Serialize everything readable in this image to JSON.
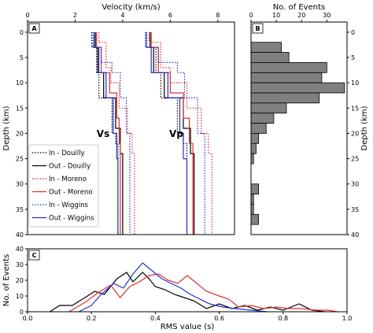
{
  "chart_data": [
    {
      "panel": "A",
      "type": "line",
      "xlabel": "Velocity (km/s)",
      "ylabel": "Depth (km)",
      "xlim": [
        0,
        8.7
      ],
      "ylim": [
        40,
        -2
      ],
      "x_ticks": [
        0,
        2,
        4,
        6,
        8
      ],
      "y_ticks": [
        0,
        5,
        10,
        15,
        20,
        25,
        30,
        35,
        40
      ],
      "annotations": [
        "Vs",
        "Vp"
      ],
      "series": [
        {
          "name": "In - Douilly",
          "style": "dotted",
          "color": "#000000",
          "vs": [
            [
              0,
              2.7
            ],
            [
              3,
              2.9
            ],
            [
              8,
              3.0
            ],
            [
              13,
              3.55
            ],
            [
              20,
              3.7
            ],
            [
              22,
              3.8
            ],
            [
              40,
              3.8
            ]
          ],
          "vp": [
            [
              0,
              5.0
            ],
            [
              3,
              5.4
            ],
            [
              8,
              5.6
            ],
            [
              13,
              6.3
            ],
            [
              20,
              6.55
            ],
            [
              22,
              6.7
            ],
            [
              40,
              6.7
            ]
          ]
        },
        {
          "name": "Out - Douilly",
          "style": "solid",
          "color": "#000000",
          "vs": [
            [
              0,
              2.85
            ],
            [
              3,
              2.95
            ],
            [
              8,
              3.2
            ],
            [
              13,
              3.7
            ],
            [
              19,
              3.9
            ],
            [
              24,
              4.0
            ],
            [
              40,
              4.0
            ]
          ],
          "vp": [
            [
              0,
              5.15
            ],
            [
              3,
              5.3
            ],
            [
              8,
              5.75
            ],
            [
              13,
              6.55
            ],
            [
              19,
              6.85
            ],
            [
              24,
              7.0
            ],
            [
              40,
              7.0
            ]
          ]
        },
        {
          "name": "In - Moreno",
          "style": "dotted",
          "color": "#e03030",
          "vs": [
            [
              0,
              3.0
            ],
            [
              2,
              3.3
            ],
            [
              7,
              3.5
            ],
            [
              10,
              3.85
            ],
            [
              15,
              4.2
            ],
            [
              20,
              4.4
            ],
            [
              24,
              4.5
            ],
            [
              40,
              4.5
            ]
          ],
          "vp": [
            [
              0,
              5.1
            ],
            [
              2,
              5.6
            ],
            [
              7,
              6.0
            ],
            [
              10,
              6.7
            ],
            [
              15,
              7.3
            ],
            [
              20,
              7.6
            ],
            [
              24,
              7.75
            ],
            [
              40,
              7.75
            ]
          ]
        },
        {
          "name": "Out - Moreno",
          "style": "solid",
          "color": "#e03030",
          "vs": [
            [
              0,
              2.9
            ],
            [
              3,
              3.1
            ],
            [
              8,
              3.45
            ],
            [
              12,
              3.75
            ],
            [
              17,
              3.85
            ],
            [
              22,
              3.9
            ],
            [
              40,
              3.9
            ]
          ],
          "vp": [
            [
              0,
              5.2
            ],
            [
              3,
              5.5
            ],
            [
              8,
              6.0
            ],
            [
              12,
              6.55
            ],
            [
              17,
              6.8
            ],
            [
              22,
              6.95
            ],
            [
              40,
              6.95
            ]
          ]
        },
        {
          "name": "In - Wiggins",
          "style": "dotted",
          "color": "#2233cc",
          "vs": [
            [
              0,
              2.75
            ],
            [
              3,
              3.1
            ],
            [
              6,
              3.55
            ],
            [
              8,
              3.9
            ],
            [
              13,
              4.15
            ],
            [
              20,
              4.3
            ],
            [
              40,
              4.3
            ]
          ],
          "vp": [
            [
              0,
              4.95
            ],
            [
              3,
              5.5
            ],
            [
              6,
              6.3
            ],
            [
              8,
              6.6
            ],
            [
              13,
              7.15
            ],
            [
              20,
              7.45
            ],
            [
              40,
              7.45
            ]
          ]
        },
        {
          "name": "Out - Wiggins",
          "style": "solid",
          "color": "#2233cc",
          "vs": [
            [
              0,
              2.8
            ],
            [
              3,
              3.0
            ],
            [
              8,
              3.3
            ],
            [
              13,
              3.6
            ],
            [
              20,
              3.75
            ],
            [
              25,
              3.8
            ],
            [
              40,
              3.8
            ]
          ],
          "vp": [
            [
              0,
              5.0
            ],
            [
              3,
              5.2
            ],
            [
              8,
              5.9
            ],
            [
              13,
              6.4
            ],
            [
              20,
              6.55
            ],
            [
              25,
              6.7
            ],
            [
              40,
              6.7
            ]
          ]
        }
      ],
      "legend_placement": "lower-left"
    },
    {
      "panel": "B",
      "type": "bar",
      "orientation": "horizontal",
      "xlabel": "No. of Events",
      "ylabel": "Depth (km)",
      "xlim": [
        0,
        38
      ],
      "ylim": [
        40,
        -2
      ],
      "x_ticks": [
        0,
        10,
        20,
        30
      ],
      "y_ticks": [
        0,
        5,
        10,
        15,
        20,
        25,
        30,
        35,
        40
      ],
      "color": "#808080",
      "bins": [
        {
          "depth_top": 0,
          "depth_bottom": 2,
          "count": 0
        },
        {
          "depth_top": 2,
          "depth_bottom": 4,
          "count": 12
        },
        {
          "depth_top": 4,
          "depth_bottom": 6,
          "count": 15
        },
        {
          "depth_top": 6,
          "depth_bottom": 8,
          "count": 30
        },
        {
          "depth_top": 8,
          "depth_bottom": 10,
          "count": 28
        },
        {
          "depth_top": 10,
          "depth_bottom": 12,
          "count": 37
        },
        {
          "depth_top": 12,
          "depth_bottom": 14,
          "count": 27
        },
        {
          "depth_top": 14,
          "depth_bottom": 16,
          "count": 14
        },
        {
          "depth_top": 16,
          "depth_bottom": 18,
          "count": 9
        },
        {
          "depth_top": 18,
          "depth_bottom": 20,
          "count": 6
        },
        {
          "depth_top": 20,
          "depth_bottom": 22,
          "count": 3
        },
        {
          "depth_top": 22,
          "depth_bottom": 24,
          "count": 2
        },
        {
          "depth_top": 24,
          "depth_bottom": 26,
          "count": 1
        },
        {
          "depth_top": 26,
          "depth_bottom": 28,
          "count": 0
        },
        {
          "depth_top": 28,
          "depth_bottom": 30,
          "count": 0
        },
        {
          "depth_top": 30,
          "depth_bottom": 32,
          "count": 3
        },
        {
          "depth_top": 32,
          "depth_bottom": 34,
          "count": 1
        },
        {
          "depth_top": 34,
          "depth_bottom": 36,
          "count": 1
        },
        {
          "depth_top": 36,
          "depth_bottom": 38,
          "count": 3
        },
        {
          "depth_top": 38,
          "depth_bottom": 40,
          "count": 0
        }
      ]
    },
    {
      "panel": "C",
      "type": "line",
      "xlabel": "RMS value (s)",
      "ylabel": "No. of Events",
      "xlim": [
        0,
        1.0
      ],
      "ylim": [
        0,
        40
      ],
      "x_ticks": [
        0.0,
        0.2,
        0.4,
        0.6,
        0.8,
        1.0
      ],
      "y_ticks": [
        0,
        10,
        20,
        30,
        40
      ],
      "series": [
        {
          "color": "#000000",
          "points": [
            [
              0.07,
              0
            ],
            [
              0.1,
              4
            ],
            [
              0.14,
              4
            ],
            [
              0.18,
              9
            ],
            [
              0.21,
              13
            ],
            [
              0.24,
              11
            ],
            [
              0.28,
              21
            ],
            [
              0.31,
              25
            ],
            [
              0.33,
              19
            ],
            [
              0.36,
              25
            ],
            [
              0.38,
              21
            ],
            [
              0.4,
              16
            ],
            [
              0.43,
              14
            ],
            [
              0.46,
              11
            ],
            [
              0.49,
              9
            ],
            [
              0.52,
              7
            ],
            [
              0.56,
              2
            ],
            [
              0.6,
              5
            ],
            [
              0.64,
              2
            ],
            [
              0.68,
              4
            ],
            [
              0.72,
              1
            ],
            [
              0.76,
              3
            ],
            [
              0.8,
              1
            ],
            [
              0.85,
              5
            ],
            [
              0.89,
              1
            ],
            [
              0.93,
              0
            ]
          ]
        },
        {
          "color": "#e03030",
          "points": [
            [
              0.13,
              0
            ],
            [
              0.18,
              6
            ],
            [
              0.22,
              12
            ],
            [
              0.26,
              17
            ],
            [
              0.29,
              9
            ],
            [
              0.32,
              16
            ],
            [
              0.35,
              19
            ],
            [
              0.38,
              23
            ],
            [
              0.41,
              24
            ],
            [
              0.44,
              20
            ],
            [
              0.47,
              18
            ],
            [
              0.5,
              23
            ],
            [
              0.53,
              18
            ],
            [
              0.56,
              13
            ],
            [
              0.6,
              10
            ],
            [
              0.63,
              8
            ],
            [
              0.66,
              3
            ],
            [
              0.7,
              4
            ],
            [
              0.74,
              2
            ],
            [
              0.78,
              3
            ],
            [
              0.82,
              2
            ],
            [
              0.86,
              2
            ],
            [
              0.9,
              1
            ],
            [
              0.94,
              1
            ],
            [
              0.97,
              0
            ]
          ]
        },
        {
          "color": "#2233cc",
          "points": [
            [
              0.16,
              0
            ],
            [
              0.2,
              4
            ],
            [
              0.23,
              11
            ],
            [
              0.27,
              18
            ],
            [
              0.3,
              15
            ],
            [
              0.33,
              24
            ],
            [
              0.36,
              31
            ],
            [
              0.39,
              26
            ],
            [
              0.42,
              21
            ],
            [
              0.45,
              18
            ],
            [
              0.48,
              15
            ],
            [
              0.51,
              11
            ],
            [
              0.54,
              8
            ],
            [
              0.57,
              5
            ],
            [
              0.61,
              3
            ],
            [
              0.65,
              2
            ],
            [
              0.7,
              1
            ],
            [
              0.75,
              0
            ]
          ]
        }
      ]
    }
  ],
  "panel_labels": {
    "a": "A",
    "b": "B",
    "c": "C"
  }
}
